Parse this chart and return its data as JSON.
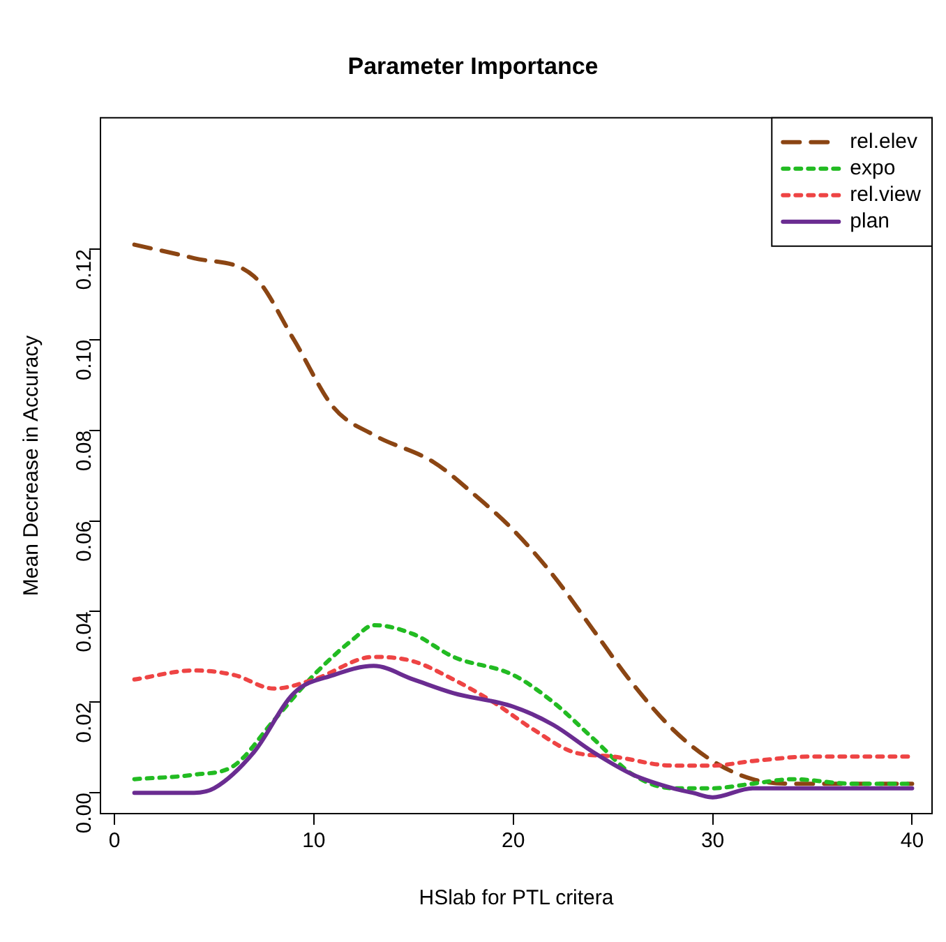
{
  "chart_data": {
    "type": "line",
    "title": "Parameter Importance",
    "xlabel": "HSlab for PTL critera",
    "ylabel": "Mean Decrease in Accuracy",
    "xlim": [
      -0.7,
      41
    ],
    "ylim": [
      -0.0046,
      0.149
    ],
    "xticks": [
      0,
      10,
      20,
      30,
      40
    ],
    "yticks": [
      {
        "value": 0,
        "label": "0.00"
      },
      {
        "value": 0.02,
        "label": "0.02"
      },
      {
        "value": 0.04,
        "label": "0.04"
      },
      {
        "value": 0.06,
        "label": "0.06"
      },
      {
        "value": 0.08,
        "label": "0.08"
      },
      {
        "value": 0.1,
        "label": "0.10"
      },
      {
        "value": 0.12,
        "label": "0.12"
      }
    ],
    "grid": false,
    "legend": "top right",
    "marker": "none",
    "series": [
      {
        "name": "rel.elev",
        "color": "#8b4513",
        "line_style": "dashed",
        "x": [
          1,
          4,
          7,
          9,
          11,
          13,
          16,
          18,
          20,
          22,
          24,
          26,
          28,
          30,
          32,
          34,
          37,
          40
        ],
        "values": [
          0.121,
          0.118,
          0.114,
          0.1,
          0.085,
          0.079,
          0.073,
          0.066,
          0.058,
          0.048,
          0.036,
          0.024,
          0.014,
          0.007,
          0.003,
          0.002,
          0.002,
          0.002
        ]
      },
      {
        "name": "expo",
        "color": "#22bb22",
        "line_style": "dotted",
        "x": [
          1,
          4,
          6,
          8,
          10,
          12,
          13,
          15,
          17,
          20,
          22,
          24,
          26,
          28,
          30,
          32,
          34,
          37,
          40
        ],
        "values": [
          0.003,
          0.004,
          0.006,
          0.016,
          0.026,
          0.034,
          0.037,
          0.035,
          0.03,
          0.026,
          0.02,
          0.012,
          0.004,
          0.001,
          0.001,
          0.002,
          0.003,
          0.002,
          0.002
        ]
      },
      {
        "name": "rel.view",
        "color": "#ee4444",
        "line_style": "dotted",
        "x": [
          1,
          4,
          6,
          8,
          10,
          13,
          15,
          17,
          19,
          21,
          23,
          25,
          28,
          30,
          32,
          35,
          40
        ],
        "values": [
          0.025,
          0.027,
          0.026,
          0.023,
          0.025,
          0.03,
          0.029,
          0.025,
          0.02,
          0.014,
          0.009,
          0.008,
          0.006,
          0.006,
          0.007,
          0.008,
          0.008
        ]
      },
      {
        "name": "plan",
        "color": "#6a2c91",
        "line_style": "solid",
        "x": [
          1,
          4,
          5,
          7,
          9,
          11,
          13,
          15,
          17,
          20,
          22,
          24,
          26,
          28,
          29,
          30,
          32,
          40
        ],
        "values": [
          0.0,
          0.0,
          0.001,
          0.009,
          0.022,
          0.026,
          0.028,
          0.025,
          0.022,
          0.019,
          0.015,
          0.009,
          0.004,
          0.001,
          0.0,
          -0.001,
          0.001,
          0.001
        ]
      }
    ]
  }
}
